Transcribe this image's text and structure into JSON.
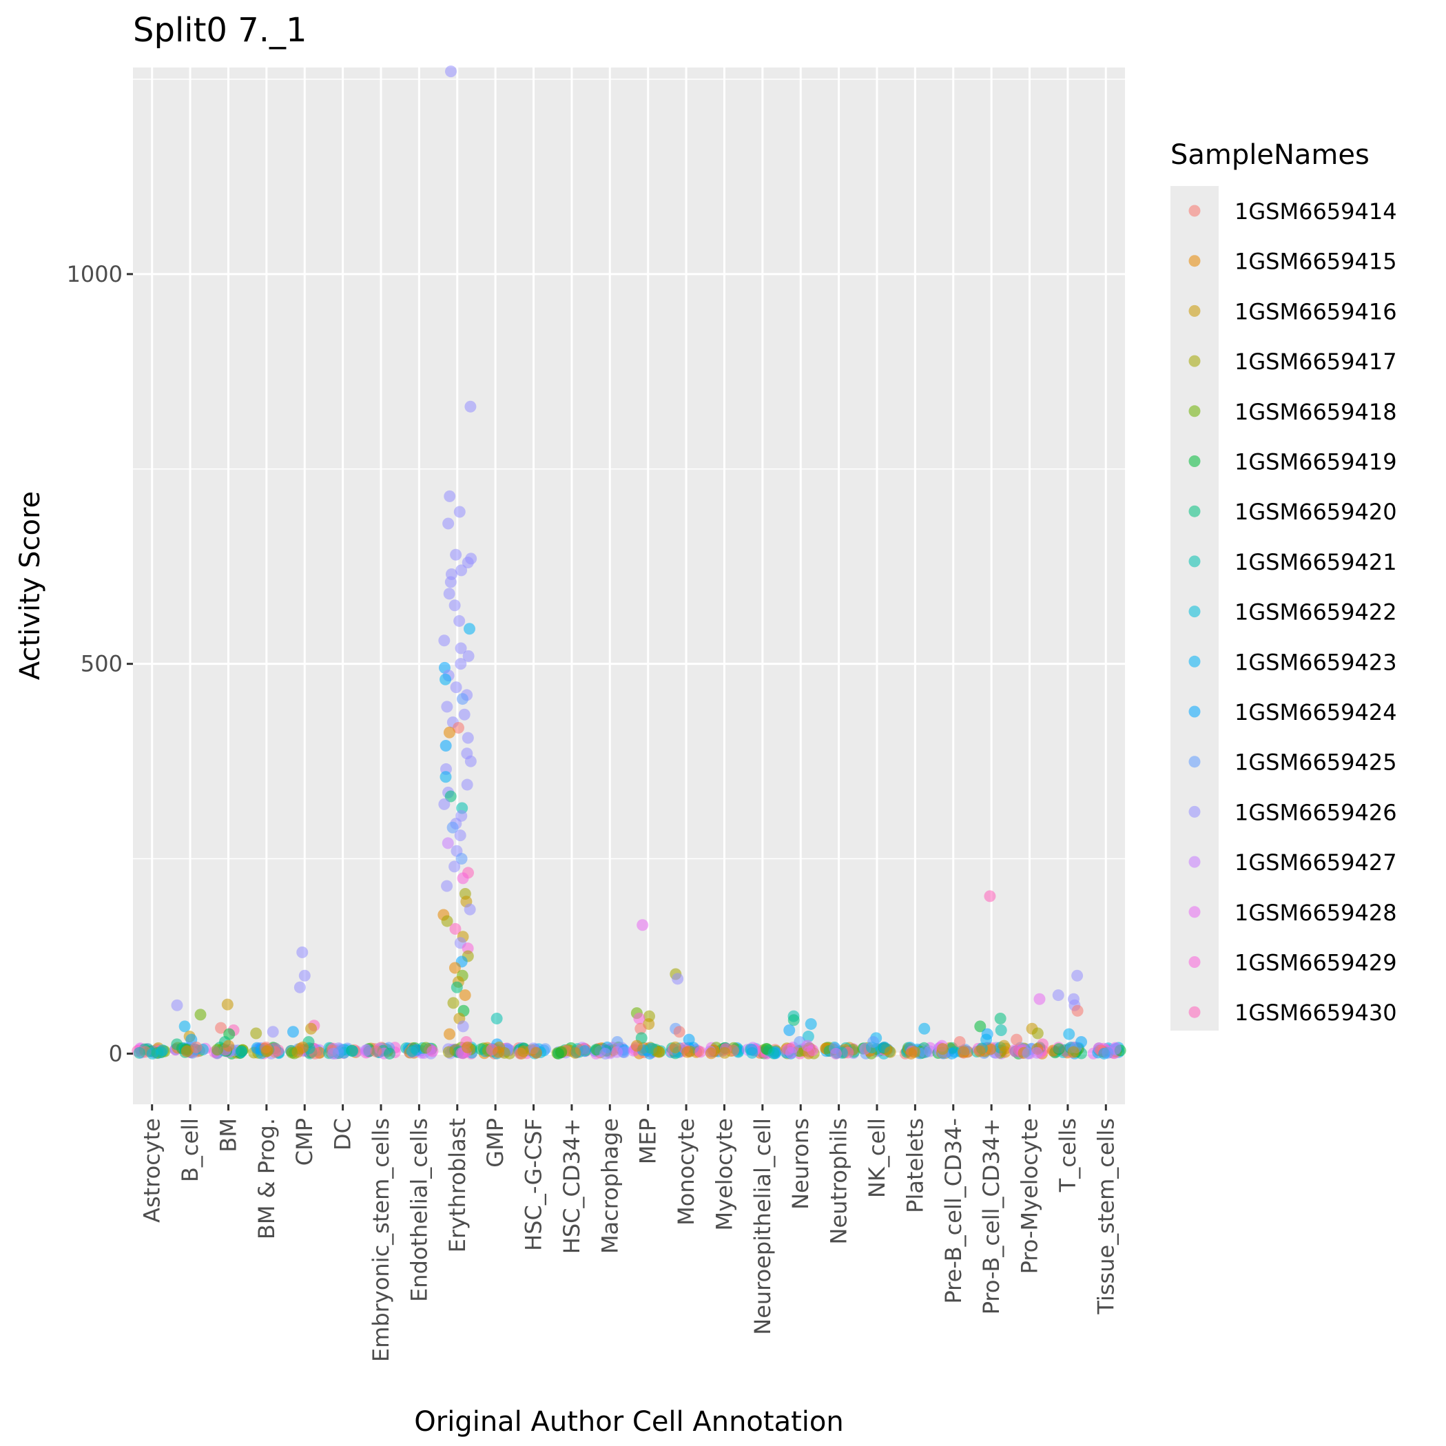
{
  "chart_data": {
    "type": "scatter",
    "title": "Split0 7._1",
    "xlabel": "Original Author Cell Annotation",
    "ylabel": "Activity Score",
    "ylim": [
      -65,
      1265
    ],
    "yticks": [
      0,
      500,
      1000
    ],
    "grid": true,
    "legend": {
      "title": "SampleNames",
      "position": "right"
    },
    "categories": [
      "Astrocyte",
      "B_cell",
      "BM",
      "BM & Prog.",
      "CMP",
      "DC",
      "Embryonic_stem_cells",
      "Endothelial_cells",
      "Erythroblast",
      "GMP",
      "HSC_-G-CSF",
      "HSC_CD34+",
      "Macrophage",
      "MEP",
      "Monocyte",
      "Myelocyte",
      "Neuroepithelial_cell",
      "Neurons",
      "Neutrophils",
      "NK_cell",
      "Platelets",
      "Pre-B_cell_CD34-",
      "Pro-B_cell_CD34+",
      "Pro-Myelocyte",
      "T_cells",
      "Tissue_stem_cells"
    ],
    "series": [
      {
        "name": "1GSM6659414",
        "color": "#F8766D"
      },
      {
        "name": "1GSM6659415",
        "color": "#E58700"
      },
      {
        "name": "1GSM6659416",
        "color": "#C99800"
      },
      {
        "name": "1GSM6659417",
        "color": "#A3A500"
      },
      {
        "name": "1GSM6659418",
        "color": "#6BB100"
      },
      {
        "name": "1GSM6659419",
        "color": "#00BA38"
      },
      {
        "name": "1GSM6659420",
        "color": "#00BF7D"
      },
      {
        "name": "1GSM6659421",
        "color": "#00C0AF"
      },
      {
        "name": "1GSM6659422",
        "color": "#00BCD8"
      },
      {
        "name": "1GSM6659423",
        "color": "#00B0F6"
      },
      {
        "name": "1GSM6659424",
        "color": "#00A5FF"
      },
      {
        "name": "1GSM6659425",
        "color": "#619CFF"
      },
      {
        "name": "1GSM6659426",
        "color": "#9590FF"
      },
      {
        "name": "1GSM6659427",
        "color": "#C77CFF"
      },
      {
        "name": "1GSM6659428",
        "color": "#E76BF3"
      },
      {
        "name": "1GSM6659429",
        "color": "#FA62DB"
      },
      {
        "name": "1GSM6659430",
        "color": "#FF62BC"
      }
    ],
    "points": [
      [
        "Astrocyte",
        "1GSM6659422",
        0
      ],
      [
        "Astrocyte",
        "1GSM6659421",
        1
      ],
      [
        "B_cell",
        "1GSM6659426",
        62
      ],
      [
        "B_cell",
        "1GSM6659418",
        50
      ],
      [
        "B_cell",
        "1GSM6659423",
        35
      ],
      [
        "B_cell",
        "1GSM6659416",
        22
      ],
      [
        "B_cell",
        "1GSM6659424",
        18
      ],
      [
        "B_cell",
        "1GSM6659420",
        12
      ],
      [
        "B_cell",
        "1GSM6659414",
        8
      ],
      [
        "B_cell",
        "1GSM6659415",
        3
      ],
      [
        "BM",
        "1GSM6659416",
        63
      ],
      [
        "BM",
        "1GSM6659414",
        33
      ],
      [
        "BM",
        "1GSM6659430",
        30
      ],
      [
        "BM",
        "1GSM6659419",
        25
      ],
      [
        "BM",
        "1GSM6659420",
        15
      ],
      [
        "BM",
        "1GSM6659415",
        10
      ],
      [
        "BM",
        "1GSM6659418",
        5
      ],
      [
        "BM & Prog.",
        "1GSM6659417",
        26
      ],
      [
        "BM & Prog.",
        "1GSM6659426",
        28
      ],
      [
        "BM & Prog.",
        "1GSM6659414",
        8
      ],
      [
        "BM & Prog.",
        "1GSM6659416",
        3
      ],
      [
        "CMP",
        "1GSM6659426",
        130
      ],
      [
        "CMP",
        "1GSM6659426",
        100
      ],
      [
        "CMP",
        "1GSM6659426",
        85
      ],
      [
        "CMP",
        "1GSM6659430",
        36
      ],
      [
        "CMP",
        "1GSM6659416",
        32
      ],
      [
        "CMP",
        "1GSM6659424",
        28
      ],
      [
        "CMP",
        "1GSM6659420",
        15
      ],
      [
        "CMP",
        "1GSM6659415",
        8
      ],
      [
        "CMP",
        "1GSM6659416",
        2
      ],
      [
        "DC",
        "1GSM6659414",
        4
      ],
      [
        "DC",
        "1GSM6659425",
        1
      ],
      [
        "DC",
        "1GSM6659426",
        0
      ],
      [
        "Embryonic_stem_cells",
        "1GSM6659420",
        0
      ],
      [
        "Endothelial_cells",
        "1GSM6659429",
        3
      ],
      [
        "Erythroblast",
        "1GSM6659426",
        1260
      ],
      [
        "Erythroblast",
        "1GSM6659426",
        830
      ],
      [
        "Erythroblast",
        "1GSM6659426",
        715
      ],
      [
        "Erythroblast",
        "1GSM6659426",
        695
      ],
      [
        "Erythroblast",
        "1GSM6659426",
        680
      ],
      [
        "Erythroblast",
        "1GSM6659426",
        640
      ],
      [
        "Erythroblast",
        "1GSM6659426",
        635
      ],
      [
        "Erythroblast",
        "1GSM6659426",
        630
      ],
      [
        "Erythroblast",
        "1GSM6659426",
        620
      ],
      [
        "Erythroblast",
        "1GSM6659426",
        615
      ],
      [
        "Erythroblast",
        "1GSM6659426",
        605
      ],
      [
        "Erythroblast",
        "1GSM6659426",
        590
      ],
      [
        "Erythroblast",
        "1GSM6659426",
        575
      ],
      [
        "Erythroblast",
        "1GSM6659426",
        555
      ],
      [
        "Erythroblast",
        "1GSM6659423",
        545
      ],
      [
        "Erythroblast",
        "1GSM6659426",
        530
      ],
      [
        "Erythroblast",
        "1GSM6659426",
        520
      ],
      [
        "Erythroblast",
        "1GSM6659426",
        510
      ],
      [
        "Erythroblast",
        "1GSM6659426",
        500
      ],
      [
        "Erythroblast",
        "1GSM6659424",
        495
      ],
      [
        "Erythroblast",
        "1GSM6659426",
        485
      ],
      [
        "Erythroblast",
        "1GSM6659423",
        480
      ],
      [
        "Erythroblast",
        "1GSM6659426",
        470
      ],
      [
        "Erythroblast",
        "1GSM6659426",
        460
      ],
      [
        "Erythroblast",
        "1GSM6659425",
        455
      ],
      [
        "Erythroblast",
        "1GSM6659426",
        445
      ],
      [
        "Erythroblast",
        "1GSM6659426",
        435
      ],
      [
        "Erythroblast",
        "1GSM6659426",
        425
      ],
      [
        "Erythroblast",
        "1GSM6659414",
        418
      ],
      [
        "Erythroblast",
        "1GSM6659415",
        412
      ],
      [
        "Erythroblast",
        "1GSM6659426",
        405
      ],
      [
        "Erythroblast",
        "1GSM6659424",
        395
      ],
      [
        "Erythroblast",
        "1GSM6659426",
        385
      ],
      [
        "Erythroblast",
        "1GSM6659426",
        375
      ],
      [
        "Erythroblast",
        "1GSM6659426",
        365
      ],
      [
        "Erythroblast",
        "1GSM6659423",
        355
      ],
      [
        "Erythroblast",
        "1GSM6659426",
        345
      ],
      [
        "Erythroblast",
        "1GSM6659426",
        335
      ],
      [
        "Erythroblast",
        "1GSM6659420",
        330
      ],
      [
        "Erythroblast",
        "1GSM6659426",
        320
      ],
      [
        "Erythroblast",
        "1GSM6659421",
        315
      ],
      [
        "Erythroblast",
        "1GSM6659426",
        305
      ],
      [
        "Erythroblast",
        "1GSM6659426",
        295
      ],
      [
        "Erythroblast",
        "1GSM6659425",
        290
      ],
      [
        "Erythroblast",
        "1GSM6659426",
        280
      ],
      [
        "Erythroblast",
        "1GSM6659427",
        270
      ],
      [
        "Erythroblast",
        "1GSM6659426",
        260
      ],
      [
        "Erythroblast",
        "1GSM6659425",
        250
      ],
      [
        "Erythroblast",
        "1GSM6659426",
        240
      ],
      [
        "Erythroblast",
        "1GSM6659430",
        232
      ],
      [
        "Erythroblast",
        "1GSM6659429",
        225
      ],
      [
        "Erythroblast",
        "1GSM6659426",
        215
      ],
      [
        "Erythroblast",
        "1GSM6659417",
        205
      ],
      [
        "Erythroblast",
        "1GSM6659416",
        195
      ],
      [
        "Erythroblast",
        "1GSM6659426",
        185
      ],
      [
        "Erythroblast",
        "1GSM6659415",
        178
      ],
      [
        "Erythroblast",
        "1GSM6659417",
        170
      ],
      [
        "Erythroblast",
        "1GSM6659430",
        160
      ],
      [
        "Erythroblast",
        "1GSM6659416",
        150
      ],
      [
        "Erythroblast",
        "1GSM6659426",
        142
      ],
      [
        "Erythroblast",
        "1GSM6659429",
        135
      ],
      [
        "Erythroblast",
        "1GSM6659417",
        125
      ],
      [
        "Erythroblast",
        "1GSM6659424",
        118
      ],
      [
        "Erythroblast",
        "1GSM6659415",
        110
      ],
      [
        "Erythroblast",
        "1GSM6659418",
        100
      ],
      [
        "Erythroblast",
        "1GSM6659416",
        92
      ],
      [
        "Erythroblast",
        "1GSM6659420",
        85
      ],
      [
        "Erythroblast",
        "1GSM6659415",
        75
      ],
      [
        "Erythroblast",
        "1GSM6659417",
        65
      ],
      [
        "Erythroblast",
        "1GSM6659419",
        55
      ],
      [
        "Erythroblast",
        "1GSM6659416",
        45
      ],
      [
        "Erythroblast",
        "1GSM6659426",
        35
      ],
      [
        "Erythroblast",
        "1GSM6659415",
        25
      ],
      [
        "Erythroblast",
        "1GSM6659430",
        15
      ],
      [
        "Erythroblast",
        "1GSM6659416",
        8
      ],
      [
        "Erythroblast",
        "1GSM6659417",
        2
      ],
      [
        "GMP",
        "1GSM6659421",
        45
      ],
      [
        "GMP",
        "1GSM6659424",
        12
      ],
      [
        "GMP",
        "1GSM6659416",
        8
      ],
      [
        "GMP",
        "1GSM6659430",
        5
      ],
      [
        "GMP",
        "1GSM6659415",
        2
      ],
      [
        "HSC_-G-CSF",
        "1GSM6659416",
        3
      ],
      [
        "HSC_-G-CSF",
        "1GSM6659415",
        1
      ],
      [
        "HSC_CD34+",
        "1GSM6659419",
        0
      ],
      [
        "HSC_CD34+",
        "1GSM6659416",
        1
      ],
      [
        "Macrophage",
        "1GSM6659425",
        15
      ],
      [
        "Macrophage",
        "1GSM6659424",
        8
      ],
      [
        "Macrophage",
        "1GSM6659427",
        2
      ],
      [
        "Macrophage",
        "1GSM6659426",
        0
      ],
      [
        "MEP",
        "1GSM6659428",
        165
      ],
      [
        "MEP",
        "1GSM6659418",
        52
      ],
      [
        "MEP",
        "1GSM6659417",
        48
      ],
      [
        "MEP",
        "1GSM6659429",
        45
      ],
      [
        "MEP",
        "1GSM6659416",
        38
      ],
      [
        "MEP",
        "1GSM6659414",
        32
      ],
      [
        "MEP",
        "1GSM6659420",
        20
      ],
      [
        "MEP",
        "1GSM6659415",
        10
      ],
      [
        "MEP",
        "1GSM6659416",
        2
      ],
      [
        "Monocyte",
        "1GSM6659417",
        102
      ],
      [
        "Monocyte",
        "1GSM6659426",
        96
      ],
      [
        "Monocyte",
        "1GSM6659425",
        32
      ],
      [
        "Monocyte",
        "1GSM6659414",
        28
      ],
      [
        "Monocyte",
        "1GSM6659424",
        18
      ],
      [
        "Monocyte",
        "1GSM6659416",
        8
      ],
      [
        "Monocyte",
        "1GSM6659415",
        2
      ],
      [
        "Myelocyte",
        "1GSM6659414",
        4
      ],
      [
        "Myelocyte",
        "1GSM6659416",
        1
      ],
      [
        "Neuroepithelial_cell",
        "1GSM6659423",
        5
      ],
      [
        "Neuroepithelial_cell",
        "1GSM6659422",
        1
      ],
      [
        "Neurons",
        "1GSM6659421",
        48
      ],
      [
        "Neurons",
        "1GSM6659420",
        43
      ],
      [
        "Neurons",
        "1GSM6659423",
        38
      ],
      [
        "Neurons",
        "1GSM6659424",
        30
      ],
      [
        "Neurons",
        "1GSM6659422",
        22
      ],
      [
        "Neurons",
        "1GSM6659425",
        15
      ],
      [
        "Neurons",
        "1GSM6659428",
        10
      ],
      [
        "Neurons",
        "1GSM6659429",
        5
      ],
      [
        "Neurons",
        "1GSM6659427",
        1
      ],
      [
        "Neutrophils",
        "1GSM6659422",
        1
      ],
      [
        "Neutrophils",
        "1GSM6659428",
        0
      ],
      [
        "NK_cell",
        "1GSM6659423",
        20
      ],
      [
        "NK_cell",
        "1GSM6659425",
        15
      ],
      [
        "NK_cell",
        "1GSM6659424",
        8
      ],
      [
        "NK_cell",
        "1GSM6659416",
        2
      ],
      [
        "Platelets",
        "1GSM6659423",
        32
      ],
      [
        "Platelets",
        "1GSM6659416",
        2
      ],
      [
        "Platelets",
        "1GSM6659415",
        0
      ],
      [
        "Pre-B_cell_CD34-",
        "1GSM6659414",
        15
      ],
      [
        "Pre-B_cell_CD34-",
        "1GSM6659428",
        10
      ],
      [
        "Pre-B_cell_CD34-",
        "1GSM6659416",
        6
      ],
      [
        "Pre-B_cell_CD34-",
        "1GSM6659415",
        2
      ],
      [
        "Pro-B_cell_CD34+",
        "1GSM6659430",
        202
      ],
      [
        "Pro-B_cell_CD34+",
        "1GSM6659420",
        45
      ],
      [
        "Pro-B_cell_CD34+",
        "1GSM6659419",
        35
      ],
      [
        "Pro-B_cell_CD34+",
        "1GSM6659421",
        30
      ],
      [
        "Pro-B_cell_CD34+",
        "1GSM6659424",
        25
      ],
      [
        "Pro-B_cell_CD34+",
        "1GSM6659423",
        18
      ],
      [
        "Pro-B_cell_CD34+",
        "1GSM6659416",
        10
      ],
      [
        "Pro-B_cell_CD34+",
        "1GSM6659415",
        3
      ],
      [
        "Pro-Myelocyte",
        "1GSM6659428",
        70
      ],
      [
        "Pro-Myelocyte",
        "1GSM6659416",
        32
      ],
      [
        "Pro-Myelocyte",
        "1GSM6659417",
        26
      ],
      [
        "Pro-Myelocyte",
        "1GSM6659414",
        18
      ],
      [
        "Pro-Myelocyte",
        "1GSM6659430",
        12
      ],
      [
        "Pro-Myelocyte",
        "1GSM6659415",
        6
      ],
      [
        "Pro-Myelocyte",
        "1GSM6659427",
        1
      ],
      [
        "T_cells",
        "1GSM6659426",
        100
      ],
      [
        "T_cells",
        "1GSM6659426",
        75
      ],
      [
        "T_cells",
        "1GSM6659426",
        70
      ],
      [
        "T_cells",
        "1GSM6659426",
        62
      ],
      [
        "T_cells",
        "1GSM6659414",
        55
      ],
      [
        "T_cells",
        "1GSM6659423",
        25
      ],
      [
        "T_cells",
        "1GSM6659424",
        15
      ],
      [
        "T_cells",
        "1GSM6659425",
        8
      ],
      [
        "T_cells",
        "1GSM6659416",
        2
      ],
      [
        "Tissue_stem_cells",
        "1GSM6659423",
        0
      ],
      [
        "Tissue_stem_cells",
        "1GSM6659425",
        1
      ]
    ]
  }
}
